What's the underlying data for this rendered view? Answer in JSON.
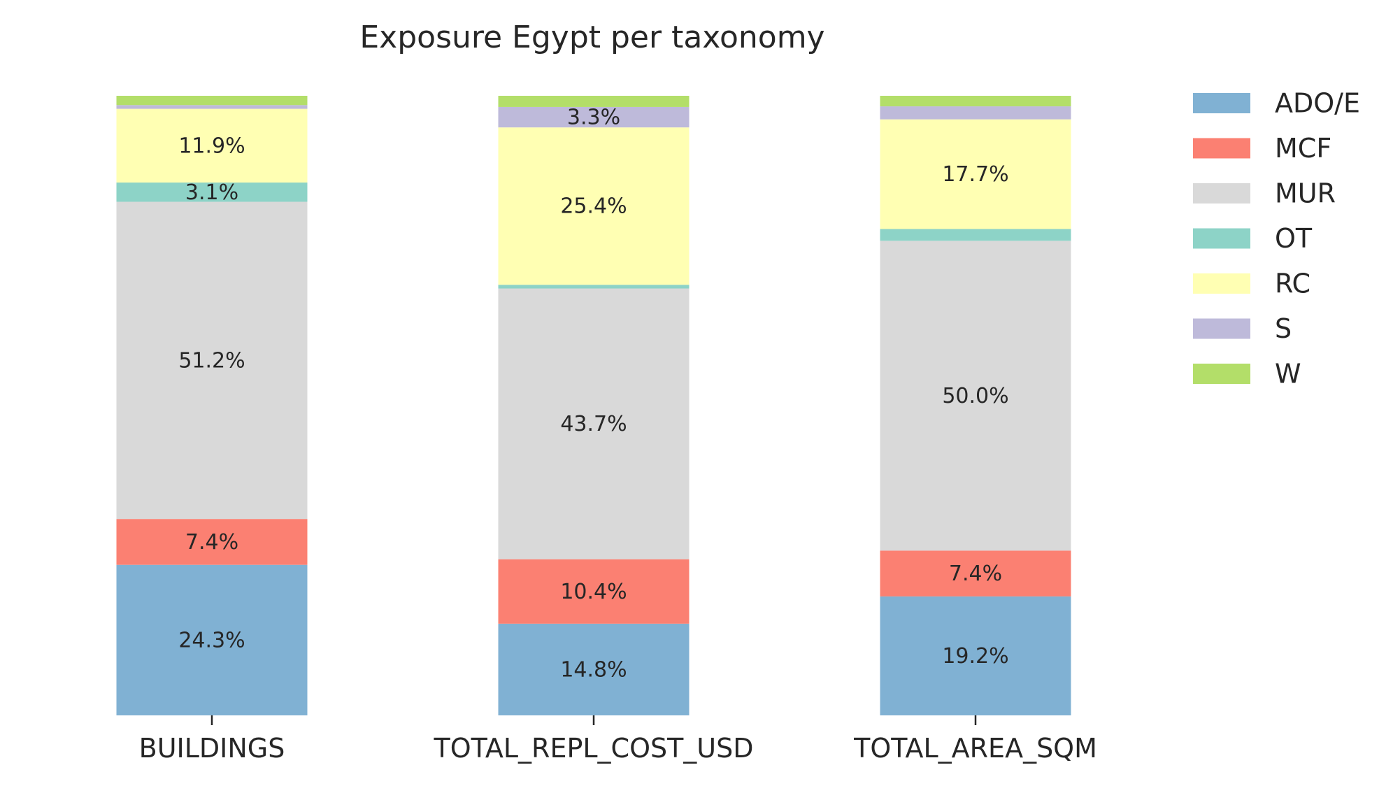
{
  "chart_data": {
    "type": "bar",
    "stacked": true,
    "normalized": true,
    "title": "Exposure Egypt per taxonomy",
    "xlabel": "",
    "ylabel": "",
    "ylim": [
      0,
      100
    ],
    "grid": false,
    "legend_position": "top-right",
    "categories": [
      "BUILDINGS",
      "TOTAL_REPL_COST_USD",
      "TOTAL_AREA_SQM"
    ],
    "series": [
      {
        "name": "ADO/E",
        "color": "#80b1d3",
        "values": [
          24.3,
          14.8,
          19.2
        ],
        "labels": [
          "24.3%",
          "14.8%",
          "19.2%"
        ]
      },
      {
        "name": "MCF",
        "color": "#fb8072",
        "values": [
          7.4,
          10.4,
          7.4
        ],
        "labels": [
          "7.4%",
          "10.4%",
          "7.4%"
        ]
      },
      {
        "name": "MUR",
        "color": "#d9d9d9",
        "values": [
          51.2,
          43.7,
          50.0
        ],
        "labels": [
          "51.2%",
          "43.7%",
          "50.0%"
        ]
      },
      {
        "name": "OT",
        "color": "#8dd3c7",
        "values": [
          3.1,
          0.6,
          1.9
        ],
        "labels": [
          "3.1%",
          "",
          ""
        ]
      },
      {
        "name": "RC",
        "color": "#ffffb3",
        "values": [
          11.9,
          25.4,
          17.7
        ],
        "labels": [
          "11.9%",
          "25.4%",
          "17.7%"
        ]
      },
      {
        "name": "S",
        "color": "#bebada",
        "values": [
          0.6,
          3.3,
          2.1
        ],
        "labels": [
          "",
          "3.3%",
          ""
        ]
      },
      {
        "name": "W",
        "color": "#b3de69",
        "values": [
          1.5,
          1.8,
          1.7
        ],
        "labels": [
          "",
          "",
          ""
        ]
      }
    ]
  }
}
